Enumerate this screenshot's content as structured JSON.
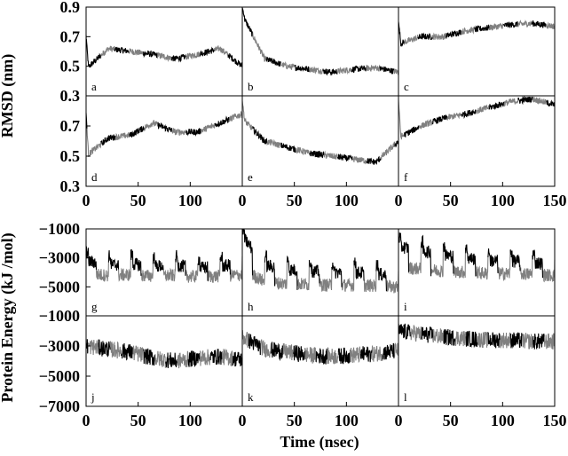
{
  "chart_data": {
    "type": "line",
    "xlabel": "Time (nsec)",
    "series_colors": [
      "#000000",
      "#808080"
    ],
    "grid": false,
    "groups": [
      {
        "ylabel": "RMSD (nm)",
        "ylim": [
          0.3,
          0.9
        ],
        "yticks": [
          "0.9",
          "0.7",
          "0.5",
          "0.3"
        ],
        "top_row_yticks": [
          "0.9",
          "0.7",
          "0.5"
        ],
        "bottom_row_yticks": [
          "0.3",
          "0.7",
          "0.5",
          "0.3"
        ]
      },
      {
        "ylabel": "Protein Energy (kJ /mol)",
        "ylim": [
          -7000,
          -1000
        ],
        "top_row_yticks": [
          "−1000",
          "−3000",
          "−5000"
        ],
        "bottom_row_yticks": [
          "−1000",
          "−3000",
          "−5000",
          "−7000"
        ]
      }
    ],
    "xticks_left": [
      "0",
      "50",
      "100"
    ],
    "xticks_right": [
      "0",
      "50",
      "100",
      "150"
    ],
    "xlim": [
      0,
      150
    ],
    "panels": [
      {
        "label": "a",
        "kind": "rmsd",
        "trend": [
          0.48,
          0.62,
          0.6,
          0.58,
          0.55,
          0.58,
          0.62,
          0.5
        ],
        "spike": 0.74
      },
      {
        "label": "b",
        "kind": "rmsd",
        "trend": [
          0.85,
          0.55,
          0.5,
          0.48,
          0.46,
          0.48,
          0.49,
          0.46
        ],
        "spike": 0.9
      },
      {
        "label": "c",
        "kind": "rmsd",
        "trend": [
          0.65,
          0.7,
          0.7,
          0.74,
          0.76,
          0.78,
          0.79,
          0.77
        ],
        "spike": 0.82
      },
      {
        "label": "d",
        "kind": "rmsd",
        "trend": [
          0.5,
          0.62,
          0.64,
          0.72,
          0.66,
          0.66,
          0.72,
          0.78
        ],
        "spike": 0.82
      },
      {
        "label": "e",
        "kind": "rmsd",
        "trend": [
          0.75,
          0.6,
          0.56,
          0.52,
          0.5,
          0.48,
          0.46,
          0.6
        ],
        "spike": 0.88
      },
      {
        "label": "f",
        "kind": "rmsd",
        "trend": [
          0.62,
          0.7,
          0.75,
          0.78,
          0.82,
          0.86,
          0.88,
          0.84
        ],
        "spike": 0.9
      },
      {
        "label": "g",
        "kind": "energy",
        "trend": [
          -3200,
          -3500,
          -3400,
          -3600,
          -3500,
          -3700,
          -3600,
          -3400
        ],
        "lower": -4800,
        "period": 7
      },
      {
        "label": "h",
        "kind": "energy",
        "trend": [
          -1500,
          -3500,
          -3800,
          -3900,
          -4000,
          -4000,
          -4100,
          -4300
        ],
        "lower": -5600,
        "period": 7
      },
      {
        "label": "i",
        "kind": "energy",
        "trend": [
          -2200,
          -2500,
          -2800,
          -3000,
          -3200,
          -3200,
          -3300,
          -3500
        ],
        "lower": -4800,
        "period": 7
      },
      {
        "label": "j",
        "kind": "energy2",
        "trend": [
          -3000,
          -3200,
          -3400,
          -3800,
          -4000,
          -3800,
          -3700,
          -3900
        ]
      },
      {
        "label": "k",
        "kind": "energy2",
        "trend": [
          -2400,
          -3200,
          -3400,
          -3600,
          -3700,
          -3600,
          -3500,
          -3300
        ]
      },
      {
        "label": "l",
        "kind": "energy2",
        "trend": [
          -2000,
          -2200,
          -2400,
          -2500,
          -2600,
          -2600,
          -2700,
          -2700
        ]
      }
    ]
  }
}
